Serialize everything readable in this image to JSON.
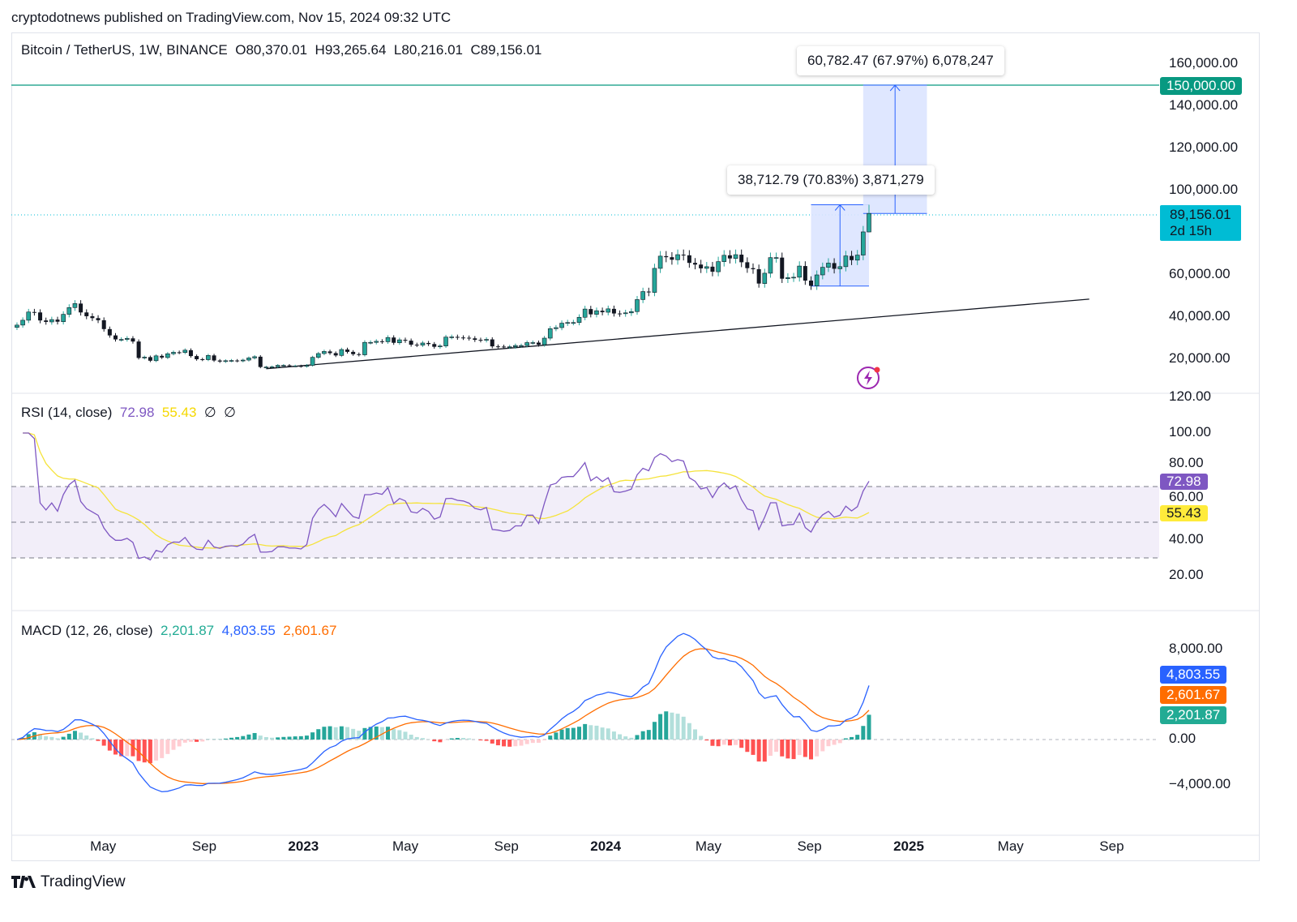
{
  "publisher": "cryptodotnews published on TradingView.com, Nov 15, 2024 09:32 UTC",
  "price_legend": {
    "symbol": "Bitcoin / TetherUS, 1W, BINANCE",
    "open": "O80,370.01",
    "high": "H93,265.64",
    "low": "L80,216.01",
    "close": "C89,156.01"
  },
  "rsi_legend": {
    "title": "RSI (14, close)",
    "rsi": "72.98",
    "ma": "55.43",
    "ext1": "∅",
    "ext2": "∅"
  },
  "macd_legend": {
    "title": "MACD (12, 26, close)",
    "hist": "2,201.87",
    "macd": "4,803.55",
    "signal": "2,601.67"
  },
  "tags": {
    "target": "150,000.00",
    "last_price": "89,156.01",
    "countdown": "2d 15h",
    "rsi": "72.98",
    "rsi_ma": "55.43",
    "macd": "4,803.55",
    "signal": "2,601.67",
    "hist": "2,201.87"
  },
  "callouts": {
    "long1": "38,712.79 (70.83%) 3,871,279",
    "long2": "60,782.47 (67.97%) 6,078,247"
  },
  "colors": {
    "up": "#26a69a",
    "down": "#131722",
    "rsi": "#7e57c2",
    "rsi_ma": "#f5e33b",
    "macd": "#2962ff",
    "signal": "#ff6d00",
    "target": "#089981",
    "last": "#00bcd4",
    "position_fill": "#dbe4ff",
    "position_line": "#2962ff"
  },
  "footer": {
    "brand": "TradingView"
  },
  "chart_data": [
    {
      "type": "candlestick",
      "interval": "1W",
      "start_week": "2022-01-17",
      "last_candle": {
        "open": 80370.01,
        "high": 93265.64,
        "low": 80216.01,
        "close": 89156.01
      },
      "closes": [
        36200,
        38500,
        42400,
        42200,
        38400,
        37700,
        38800,
        37800,
        41300,
        44500,
        46400,
        42200,
        40400,
        39500,
        38500,
        34300,
        31300,
        29400,
        29400,
        29900,
        28400,
        20600,
        21000,
        19300,
        21600,
        20800,
        22600,
        23300,
        23200,
        24300,
        21500,
        20000,
        19800,
        21800,
        19400,
        18900,
        19300,
        19400,
        19200,
        19600,
        20600,
        21200,
        16300,
        16300,
        16400,
        17100,
        17100,
        16800,
        16800,
        16600,
        17100,
        20900,
        22700,
        23700,
        22900,
        21800,
        24600,
        23500,
        22400,
        22100,
        28000,
        28000,
        28500,
        28300,
        30300,
        27800,
        29200,
        28800,
        26900,
        26700,
        27700,
        27200,
        25900,
        26300,
        30500,
        30600,
        30300,
        30200,
        29900,
        29200,
        29000,
        29400,
        26100,
        26000,
        25800,
        25900,
        26500,
        26500,
        27900,
        27900,
        26900,
        30000,
        34500,
        35000,
        37100,
        37400,
        37400,
        39900,
        43800,
        41300,
        43000,
        42300,
        43900,
        41700,
        41600,
        42000,
        42600,
        48300,
        52100,
        51700,
        63100,
        68900,
        68400,
        67200,
        69600,
        69300,
        65700,
        64900,
        63100,
        63900,
        61500,
        66300,
        69300,
        67800,
        69600,
        66000,
        63200,
        62700,
        55900,
        60800,
        68200,
        68200,
        58200,
        58700,
        58900,
        64200,
        57300,
        54800,
        60000,
        63600,
        65600,
        62900,
        63900,
        69000,
        67000,
        69400,
        80400,
        89156.01
      ],
      "y_ticks": [
        20000,
        40000,
        60000,
        100000,
        120000,
        140000,
        160000
      ],
      "y_tick_labels": [
        "20,000.00",
        "40,000.00",
        "60,000.00",
        "100,000.00",
        "120,000.00",
        "140,000.00",
        "160,000.00"
      ],
      "horizontal_line": 150000,
      "trendline": [
        {
          "date": "2022-11-14",
          "price": 15500
        },
        {
          "date": "2025-08-04",
          "price": 48500
        }
      ],
      "long_positions": [
        {
          "entry_date": "2024-09-02",
          "end_date": "2024-11-11",
          "entry": 54700,
          "target": 93265.64
        },
        {
          "entry_date": "2024-11-04",
          "end_date": "2025-01-20",
          "entry": 89156.01,
          "target": 150000
        }
      ]
    },
    {
      "type": "line",
      "name": "RSI (14, close)",
      "y_ticks": [
        20,
        40,
        60,
        80,
        100,
        120
      ],
      "y_tick_labels": [
        "20.00",
        "40.00",
        "60.00",
        "80.00",
        "100.00",
        "120.00"
      ],
      "bands": [
        30,
        50,
        70
      ],
      "last": {
        "rsi": 72.98,
        "ma": 55.43
      }
    },
    {
      "type": "bar+line",
      "name": "MACD (12, 26, close)",
      "y_ticks": [
        -4000,
        0,
        8000
      ],
      "y_tick_labels": [
        "−4,000.00",
        "0.00",
        "8,000.00"
      ],
      "last": {
        "macd": 4803.55,
        "signal": 2601.67,
        "hist": 2201.87
      }
    },
    {
      "type": "time_axis",
      "ticks": [
        {
          "date": "2022-05-01",
          "label": "May",
          "bold": false
        },
        {
          "date": "2022-09-01",
          "label": "Sep",
          "bold": false
        },
        {
          "date": "2023-01-01",
          "label": "2023",
          "bold": true
        },
        {
          "date": "2023-05-01",
          "label": "May",
          "bold": false
        },
        {
          "date": "2023-09-01",
          "label": "Sep",
          "bold": false
        },
        {
          "date": "2024-01-01",
          "label": "2024",
          "bold": true
        },
        {
          "date": "2024-05-01",
          "label": "May",
          "bold": false
        },
        {
          "date": "2024-09-01",
          "label": "Sep",
          "bold": false
        },
        {
          "date": "2025-01-01",
          "label": "2025",
          "bold": true
        },
        {
          "date": "2025-05-01",
          "label": "May",
          "bold": false
        },
        {
          "date": "2025-09-01",
          "label": "Sep",
          "bold": false
        }
      ]
    }
  ]
}
